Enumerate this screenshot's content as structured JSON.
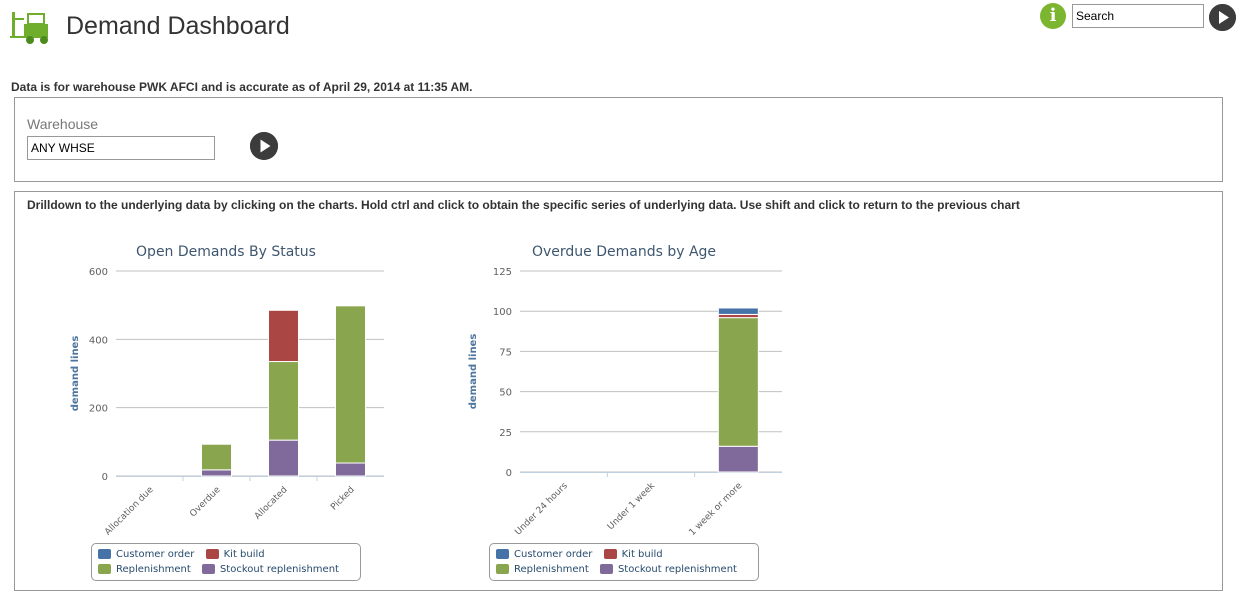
{
  "header": {
    "title": "Demand Dashboard",
    "logo_icon": "forklift-icon",
    "info_icon": "info-icon",
    "info_glyph": "i",
    "search_value": "Search",
    "go_icon": "play-circle-icon"
  },
  "accuracy_text": "Data is for warehouse PWK AFCI and is accurate as of April 29, 2014 at 11:35 AM.",
  "filter": {
    "warehouse_label": "Warehouse",
    "warehouse_value": "ANY WHSE",
    "go_icon": "play-circle-icon"
  },
  "drilldown_text": "Drilldown to the underlying data by clicking on the charts. Hold ctrl and click to obtain the specific series of underlying data. Use shift and click to return to the previous chart",
  "colors": {
    "customer_order": "#4572a7",
    "kit_build": "#aa4643",
    "replenishment": "#89a54e",
    "stockout_replenishment": "#80699b",
    "brand_green": "#7cb631"
  },
  "chart_data": [
    {
      "type": "bar",
      "stacked": true,
      "title": "Open Demands By Status",
      "ylabel": "demand lines",
      "xlabel": "",
      "ylim": [
        0,
        600
      ],
      "yticks": [
        0,
        200,
        400,
        600
      ],
      "categories": [
        "Allocation due",
        "Overdue",
        "Allocated",
        "Picked"
      ],
      "series": [
        {
          "name": "Customer order",
          "values": [
            0,
            0,
            0,
            0
          ]
        },
        {
          "name": "Kit build",
          "values": [
            0,
            0,
            150,
            0
          ]
        },
        {
          "name": "Replenishment",
          "values": [
            0,
            75,
            230,
            460
          ]
        },
        {
          "name": "Stockout replenishment",
          "values": [
            0,
            18,
            105,
            38
          ]
        }
      ],
      "legend": "bottom",
      "grid": true
    },
    {
      "type": "bar",
      "stacked": true,
      "title": "Overdue Demands by Age",
      "ylabel": "demand lines",
      "xlabel": "",
      "ylim": [
        0,
        125
      ],
      "yticks": [
        0,
        25,
        50,
        75,
        100,
        125
      ],
      "categories": [
        "Under 24 hours",
        "Under 1 week",
        "1 week or more"
      ],
      "series": [
        {
          "name": "Customer order",
          "values": [
            0,
            0,
            4
          ]
        },
        {
          "name": "Kit build",
          "values": [
            0,
            0,
            2
          ]
        },
        {
          "name": "Replenishment",
          "values": [
            0,
            0,
            80
          ]
        },
        {
          "name": "Stockout replenishment",
          "values": [
            0,
            0,
            16
          ]
        }
      ],
      "legend": "bottom",
      "grid": true
    }
  ]
}
